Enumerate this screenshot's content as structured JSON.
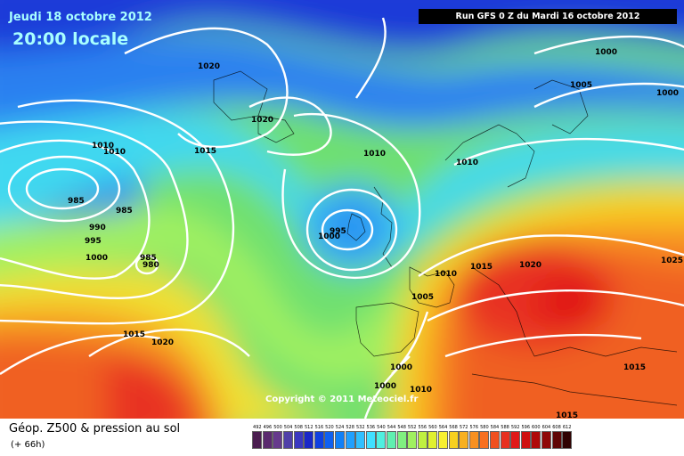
{
  "header": {
    "date": "Jeudi 18 octobre 2012",
    "time": "20:00 locale",
    "run": "Run GFS 0 Z du Mardi 16 octobre 2012"
  },
  "copyright": "Copyright © 2011 Meteociel.fr",
  "legend": {
    "title": "Géop. Z500 & pression au sol",
    "subtitle": "(+ 66h)",
    "values": [
      "492",
      "496",
      "500",
      "504",
      "508",
      "512",
      "516",
      "520",
      "524",
      "528",
      "532",
      "536",
      "540",
      "544",
      "548",
      "552",
      "556",
      "560",
      "564",
      "568",
      "572",
      "576",
      "580",
      "584",
      "588",
      "592",
      "596",
      "600",
      "604",
      "608",
      "612"
    ],
    "colors": [
      "#4b1e50",
      "#5a2a6e",
      "#663a8c",
      "#5040a8",
      "#3a38c0",
      "#1a28c8",
      "#1040e0",
      "#1060f0",
      "#1080f8",
      "#20a0ff",
      "#30c0ff",
      "#40e0ff",
      "#50f0e0",
      "#60f0b0",
      "#80f080",
      "#a0f060",
      "#c0f040",
      "#e0f030",
      "#f8f030",
      "#f8d020",
      "#f8b020",
      "#f89020",
      "#f87020",
      "#f05020",
      "#e83020",
      "#e01818",
      "#d01010",
      "#b00808",
      "#900808",
      "#600404",
      "#300202"
    ]
  },
  "isobars": [
    {
      "label": "1020"
    },
    {
      "label": "1020"
    },
    {
      "label": "1015"
    },
    {
      "label": "1010"
    },
    {
      "label": "1010"
    },
    {
      "label": "1010"
    },
    {
      "label": "1000"
    },
    {
      "label": "1005"
    },
    {
      "label": "1000"
    },
    {
      "label": "985"
    },
    {
      "label": "985"
    },
    {
      "label": "990"
    },
    {
      "label": "995"
    },
    {
      "label": "1000"
    },
    {
      "label": "985"
    },
    {
      "label": "980"
    },
    {
      "label": "995"
    },
    {
      "label": "1000"
    },
    {
      "label": "1010"
    },
    {
      "label": "1015"
    },
    {
      "label": "1020"
    },
    {
      "label": "1025"
    },
    {
      "label": "1015"
    },
    {
      "label": "1015"
    },
    {
      "label": "1000"
    },
    {
      "label": "1000"
    },
    {
      "label": "1010"
    },
    {
      "label": "1015"
    },
    {
      "label": "1020"
    },
    {
      "label": "1005"
    },
    {
      "label": "1010"
    }
  ]
}
